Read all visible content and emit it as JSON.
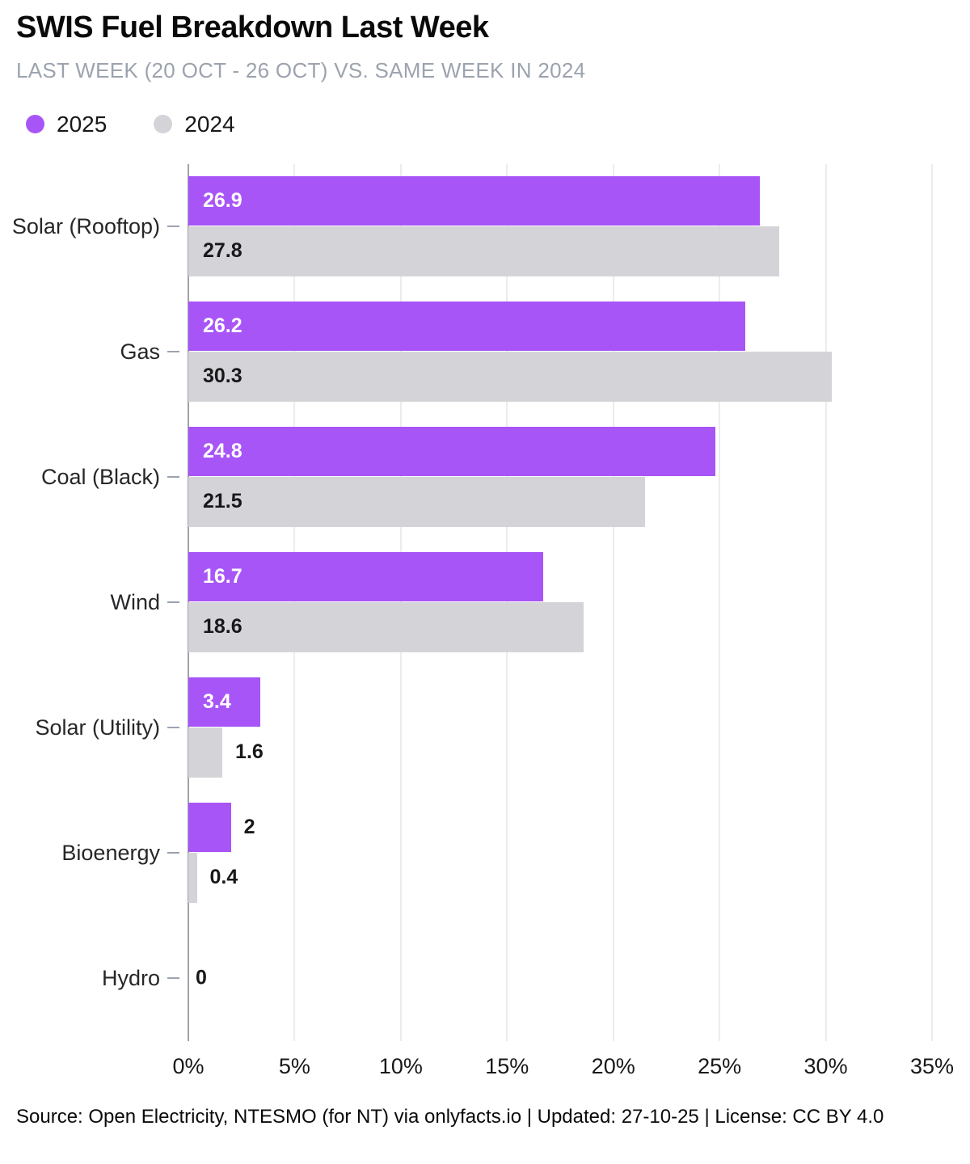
{
  "header": {
    "title": "SWIS Fuel Breakdown Last Week",
    "subtitle": "LAST WEEK (20 OCT - 26 OCT) VS. SAME WEEK IN 2024"
  },
  "legend": [
    {
      "label": "2025",
      "color": "#a855f7"
    },
    {
      "label": "2024",
      "color": "#d4d4d8"
    }
  ],
  "chart_data": {
    "type": "bar",
    "orientation": "horizontal",
    "title": "SWIS Fuel Breakdown Last Week",
    "categories": [
      "Solar (Rooftop)",
      "Gas",
      "Coal (Black)",
      "Wind",
      "Solar (Utility)",
      "Bioenergy",
      "Hydro"
    ],
    "series": [
      {
        "name": "2025",
        "color": "#a855f7",
        "values": [
          26.9,
          26.2,
          24.8,
          16.7,
          3.4,
          2,
          0
        ],
        "labels": [
          "26.9",
          "26.2",
          "24.8",
          "16.7",
          "3.4",
          "2",
          "0"
        ]
      },
      {
        "name": "2024",
        "color": "#d4d4d8",
        "values": [
          27.8,
          30.3,
          21.5,
          18.6,
          1.6,
          0.4,
          0
        ],
        "labels": [
          "27.8",
          "30.3",
          "21.5",
          "18.6",
          "1.6",
          "0.4",
          ""
        ]
      }
    ],
    "unit": "%",
    "xlim": [
      0,
      35
    ],
    "x_ticks": [
      0,
      5,
      10,
      15,
      20,
      25,
      30,
      35
    ],
    "x_tick_labels": [
      "0%",
      "5%",
      "10%",
      "15%",
      "20%",
      "25%",
      "30%",
      "35%"
    ],
    "grid": true,
    "legend_position": "top-left"
  },
  "footer": {
    "source": "Source: Open Electricity, NTESMO (for NT) via onlyfacts.io | Updated: 27-10-25 | License: CC BY 4.0"
  }
}
